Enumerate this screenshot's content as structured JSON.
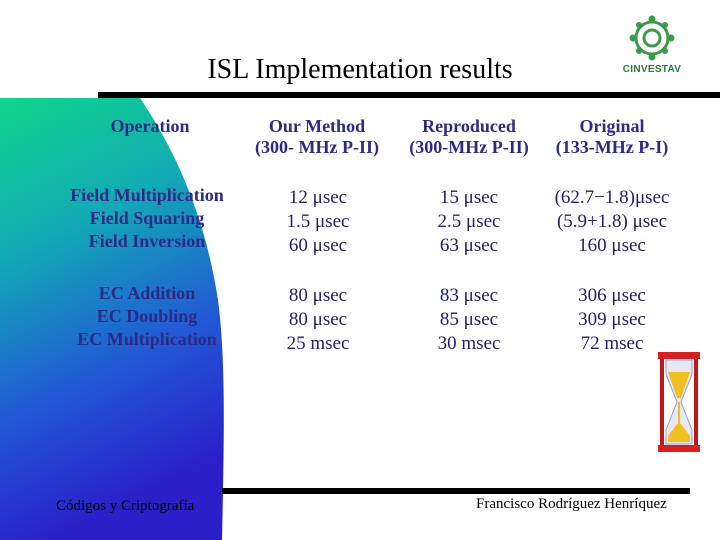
{
  "slide": {
    "title": "ISL Implementation results",
    "logo_text": "CINVESTAV",
    "footer_left": "Códigos y Criptografía",
    "footer_right": "Francisco Rodríguez Henríquez"
  },
  "table": {
    "headers": [
      {
        "line1": "Operation",
        "line2": ""
      },
      {
        "line1": "Our Method",
        "line2": "(300- MHz P-II)"
      },
      {
        "line1": "Reproduced",
        "line2": "(300-MHz P-II)"
      },
      {
        "line1": "Original",
        "line2": "(133-MHz P-I)"
      }
    ],
    "groups": [
      {
        "operations": [
          "Field Multiplication",
          "Field Squaring",
          "Field Inversion"
        ],
        "our_method": [
          "12 μsec",
          "1.5 μsec",
          "60 μsec"
        ],
        "reproduced": [
          "15 μsec",
          "2.5 μsec",
          "63 μsec"
        ],
        "original": [
          "(62.7−1.8)μsec",
          "(5.9+1.8) μsec",
          "160 μsec"
        ]
      },
      {
        "operations": [
          "EC Addition",
          "EC Doubling",
          "EC Multiplication"
        ],
        "our_method": [
          "80 μsec",
          "80 μsec",
          "25 msec"
        ],
        "reproduced": [
          "83 μsec",
          "85 μsec",
          "30 msec"
        ],
        "original": [
          "306 μsec",
          "309 μsec",
          "72 msec"
        ]
      }
    ]
  },
  "colors": {
    "text": "#2d2a86",
    "gradient_top": "#1bd18a",
    "gradient_bottom": "#2a1fc8"
  }
}
